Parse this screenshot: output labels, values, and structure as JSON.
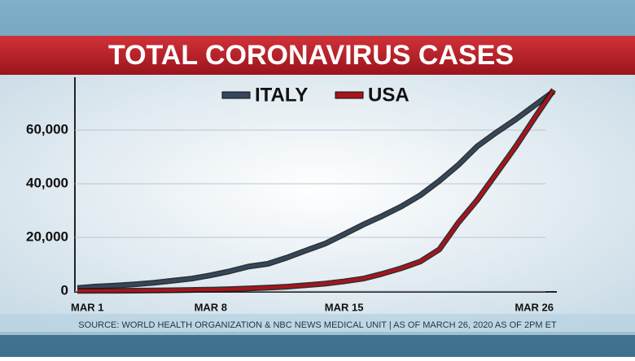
{
  "chart_data": {
    "type": "line",
    "title": "TOTAL CORONAVIRUS CASES",
    "source": "SOURCE: WORLD HEALTH ORGANIZATION & NBC NEWS MEDICAL UNIT | AS OF MARCH 26, 2020 AS OF 2PM ET",
    "categories": [
      "MAR 1",
      null,
      null,
      null,
      null,
      null,
      null,
      "MAR 8",
      null,
      null,
      null,
      null,
      null,
      null,
      "MAR 15",
      null,
      null,
      null,
      null,
      null,
      null,
      null,
      null,
      null,
      null,
      "MAR 26"
    ],
    "series": [
      {
        "name": "ITALY",
        "color": "#34475c",
        "values": [
          1128,
          1694,
          2036,
          2502,
          3089,
          3858,
          4636,
          5883,
          7375,
          9172,
          10149,
          12462,
          15113,
          17660,
          21157,
          24747,
          27980,
          31506,
          35713,
          41035,
          47021,
          54000,
          59138,
          63927,
          69176,
          74386
        ]
      },
      {
        "name": "USA",
        "color": "#a8141b",
        "values": [
          75,
          100,
          124,
          158,
          221,
          319,
          435,
          541,
          704,
          994,
          1301,
          1630,
          2183,
          2770,
          3613,
          4632,
          6421,
          8500,
          11000,
          15500,
          25493,
          34000,
          43847,
          53740,
          64500,
          75000
        ]
      }
    ],
    "ylim": [
      0,
      80000
    ],
    "yticks": [
      0,
      {
        "value": 20000,
        "label": "20,000"
      },
      {
        "value": 40000,
        "label": "40,000"
      },
      {
        "value": 60000,
        "label": "60,000"
      }
    ],
    "grid": true
  }
}
